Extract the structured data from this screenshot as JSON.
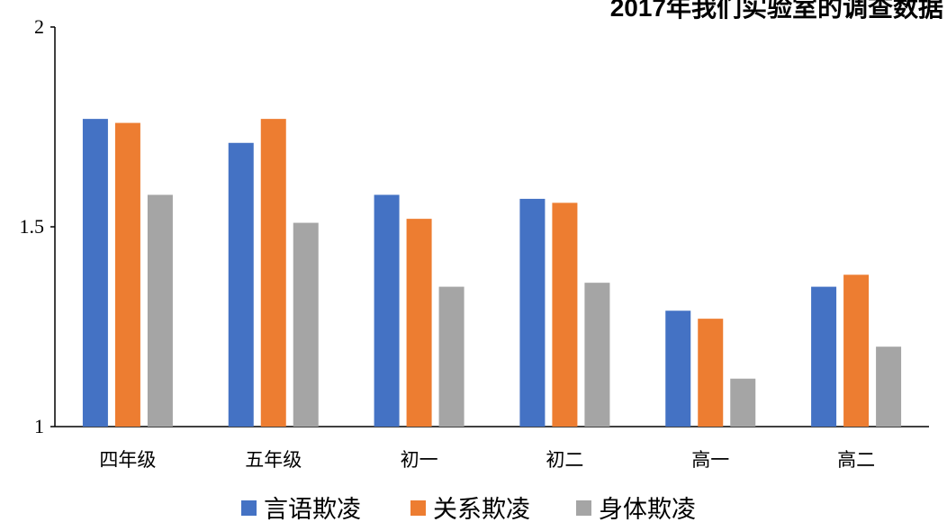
{
  "chart_data": {
    "type": "bar",
    "title": "2017年我们实验室的调查数据",
    "categories": [
      "四年级",
      "五年级",
      "初一",
      "初二",
      "高一",
      "高二"
    ],
    "series": [
      {
        "name": "言语欺凌",
        "color": "#4472C4",
        "values": [
          1.77,
          1.71,
          1.58,
          1.57,
          1.29,
          1.35
        ]
      },
      {
        "name": "关系欺凌",
        "color": "#ED7D31",
        "values": [
          1.76,
          1.77,
          1.52,
          1.56,
          1.27,
          1.38
        ]
      },
      {
        "name": "身体欺凌",
        "color": "#A5A5A5",
        "values": [
          1.58,
          1.51,
          1.35,
          1.36,
          1.12,
          1.2
        ]
      }
    ],
    "ylim": [
      1,
      2
    ],
    "yticks": [
      "1",
      "1.5",
      "2"
    ],
    "xlabel": "",
    "ylabel": "",
    "grid": false,
    "legend_position": "bottom"
  }
}
